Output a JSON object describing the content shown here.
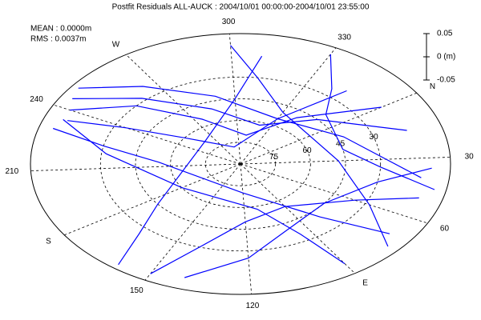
{
  "chart_data": {
    "type": "skyplot",
    "title": "Postfit Residuals ALL-AUCK : 2004/10/01 00:00:00-2004/10/01 23:55:00",
    "mean_label": "MEAN : 0.0000m",
    "rms_label": "RMS : 0.0037m",
    "azimuth_labels": [
      "N",
      "30",
      "60",
      "E",
      "120",
      "150",
      "S",
      "210",
      "240",
      "W",
      "300",
      "330"
    ],
    "elevation_ticks": [
      30,
      45,
      60,
      75
    ],
    "color": "#0000ff",
    "scale_lim": [
      -0.05,
      0.05
    ],
    "scale_ticks": [
      0.05,
      {
        "value": 0,
        "label": "0 (m)"
      },
      -0.05
    ],
    "tracks": [
      {
        "az": [
          250,
          265,
          290,
          330,
          10,
          40
        ],
        "el": [
          3,
          22,
          42,
          55,
          42,
          12
        ]
      },
      {
        "az": [
          245,
          260,
          285,
          320,
          350,
          15
        ],
        "el": [
          5,
          28,
          50,
          62,
          45,
          15
        ]
      },
      {
        "az": [
          240,
          255,
          275,
          310,
          340,
          360
        ],
        "el": [
          8,
          30,
          55,
          70,
          50,
          18
        ]
      },
      {
        "az": [
          235,
          240,
          250,
          290,
          330,
          345
        ],
        "el": [
          10,
          35,
          60,
          78,
          55,
          22
        ]
      },
      {
        "az": [
          230,
          225,
          215,
          120,
          80,
          70
        ],
        "el": [
          6,
          30,
          55,
          70,
          40,
          10
        ]
      },
      {
        "az": [
          235,
          220,
          180,
          110,
          95,
          90
        ],
        "el": [
          8,
          32,
          60,
          58,
          35,
          8
        ]
      },
      {
        "az": [
          150,
          140,
          120,
          90,
          60,
          50
        ],
        "el": [
          5,
          30,
          50,
          55,
          35,
          10
        ]
      },
      {
        "az": [
          160,
          165,
          175,
          260,
          300,
          310
        ],
        "el": [
          3,
          25,
          45,
          68,
          45,
          15
        ]
      },
      {
        "az": [
          140,
          120,
          100,
          70,
          45,
          35
        ],
        "el": [
          8,
          25,
          40,
          45,
          30,
          8
        ]
      },
      {
        "az": [
          330,
          340,
          350,
          20,
          35,
          45
        ],
        "el": [
          5,
          25,
          40,
          45,
          30,
          5
        ]
      },
      {
        "az": [
          300,
          310,
          330,
          30,
          60,
          75
        ],
        "el": [
          8,
          30,
          50,
          48,
          28,
          5
        ]
      }
    ]
  }
}
